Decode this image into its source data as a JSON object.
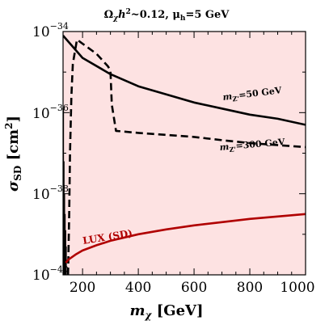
{
  "chart_data": {
    "type": "line",
    "title_parts": [
      "Ω",
      "χ",
      "h",
      "2",
      "~0.12, μ",
      "h",
      "=5 GeV"
    ],
    "xlabel_parts": [
      "m",
      "χ",
      " [GeV]"
    ],
    "ylabel_parts": [
      "σ",
      "SD",
      " [cm",
      "2",
      "]"
    ],
    "xlim": [
      130,
      1000
    ],
    "ylim_log10": [
      -40,
      -34
    ],
    "x_scale": "linear",
    "y_scale": "log",
    "x_ticks": [
      200,
      400,
      600,
      800,
      1000
    ],
    "x_tick_labels": [
      "200",
      "400",
      "600",
      "800",
      "1000"
    ],
    "y_ticks_log10": [
      -40,
      -38,
      -36,
      -34
    ],
    "y_tick_labels": [
      {
        "base": "10",
        "exp": "−40"
      },
      {
        "base": "10",
        "exp": "−38"
      },
      {
        "base": "10",
        "exp": "−36"
      },
      {
        "base": "10",
        "exp": "−34"
      }
    ],
    "shaded_region": {
      "color": "#fde2e2"
    },
    "series": [
      {
        "name": "mZ'=50 GeV",
        "label_parts": [
          "m",
          "Z'",
          "=50 GeV"
        ],
        "style": "solid",
        "color": "#000000",
        "x": [
          130,
          200,
          300,
          400,
          500,
          600,
          700,
          800,
          900,
          1000
        ],
        "y_log10": [
          -34.1,
          -34.65,
          -35.05,
          -35.35,
          -35.55,
          -35.75,
          -35.9,
          -36.05,
          -36.15,
          -36.3
        ]
      },
      {
        "name": "mZ'=300 GeV",
        "label_parts": [
          "m",
          "Z'",
          "=300 GeV"
        ],
        "style": "dashed",
        "color": "#000000",
        "x": [
          148,
          152,
          155,
          160,
          165,
          180,
          250,
          290,
          300,
          305,
          320,
          400,
          500,
          600,
          700,
          800,
          900,
          1000
        ],
        "y_log10": [
          -40.0,
          -38.5,
          -37.0,
          -35.6,
          -34.8,
          -34.2,
          -34.55,
          -34.85,
          -34.95,
          -35.8,
          -36.45,
          -36.5,
          -36.55,
          -36.6,
          -36.68,
          -36.75,
          -36.8,
          -36.85
        ]
      },
      {
        "name": "LUX (SD)",
        "label_parts": [
          "LUX (SD)"
        ],
        "style": "solid",
        "color": "#b00000",
        "x": [
          140,
          150,
          175,
          200,
          250,
          300,
          400,
          500,
          600,
          700,
          800,
          900,
          1000
        ],
        "y_log10": [
          -39.7,
          -39.62,
          -39.5,
          -39.4,
          -39.27,
          -39.16,
          -39.0,
          -38.88,
          -38.78,
          -38.7,
          -38.62,
          -38.56,
          -38.5
        ]
      }
    ],
    "resonance_lines_x": [
      131,
      133,
      135,
      137,
      139,
      141
    ],
    "resonance_lines_top_log10": [
      -35.9,
      -37.2,
      -38.0,
      -38.5,
      -38.9,
      -39.3
    ]
  }
}
